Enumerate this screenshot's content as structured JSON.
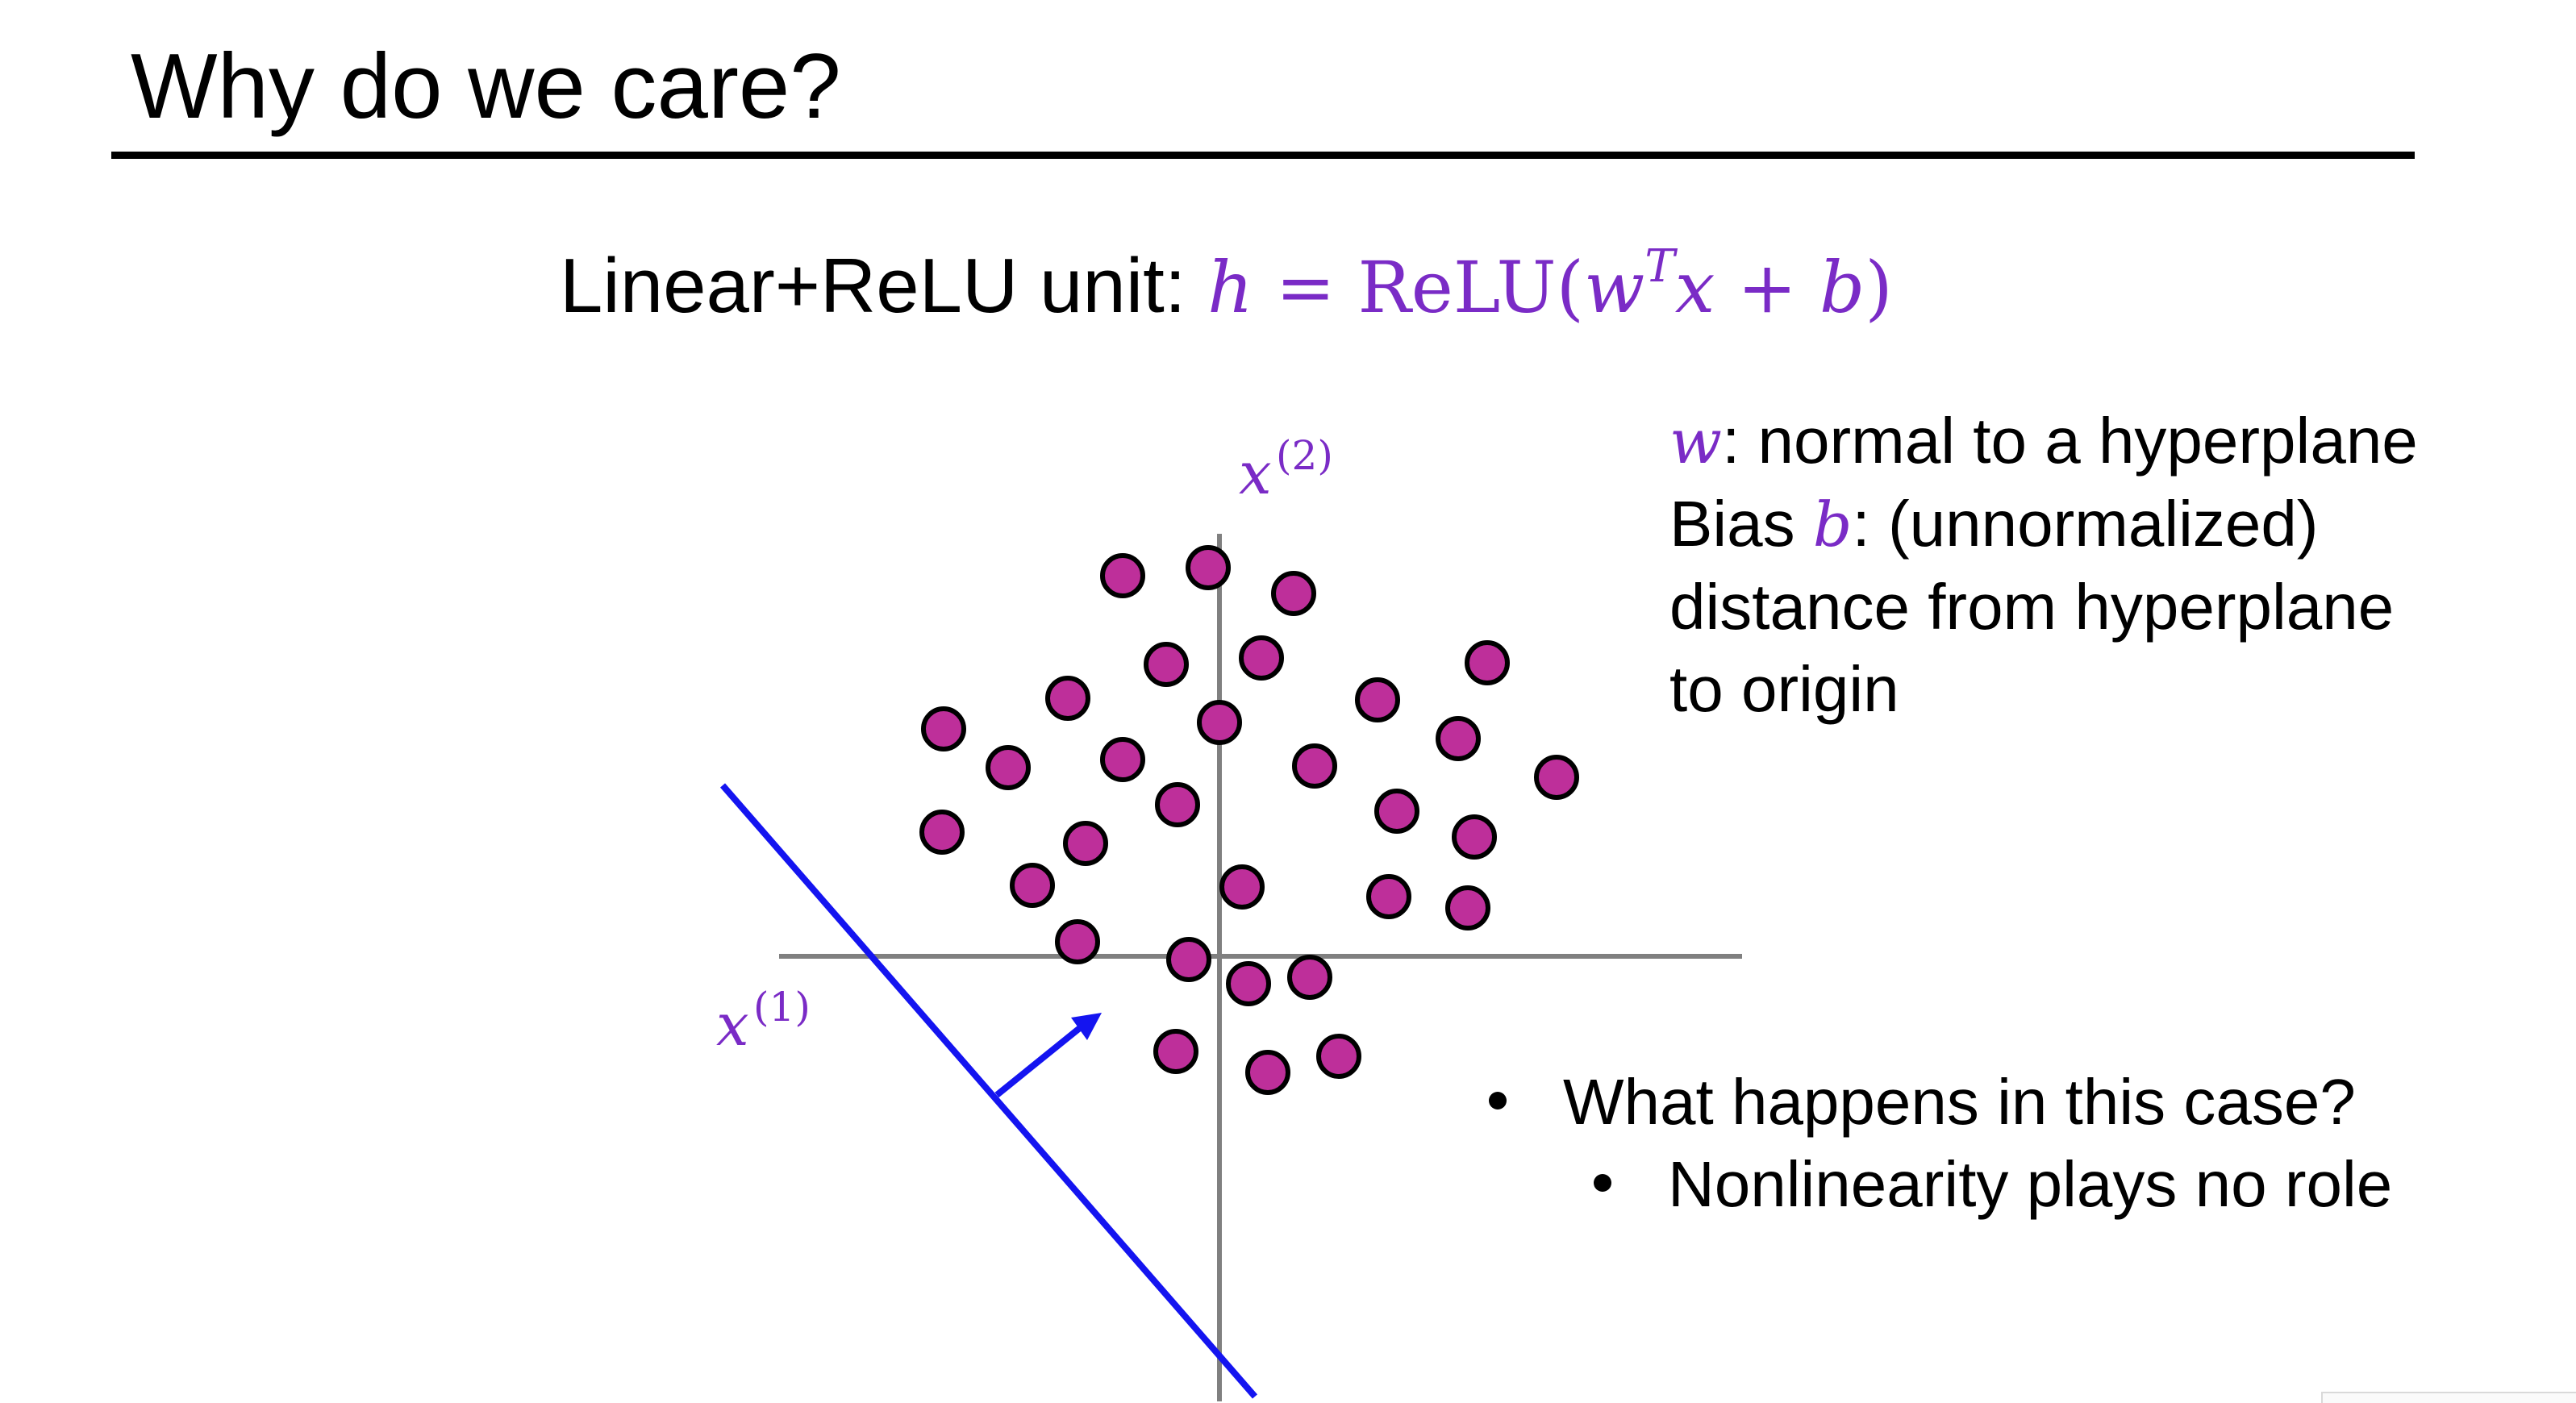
{
  "slide": {
    "title": "Why do we care?",
    "formula": {
      "prefix": "Linear+ReLU unit: ",
      "lhs": "h",
      "equals": " = ",
      "func_open": "ReLU(",
      "w": "w",
      "T": "T",
      "x": "x",
      "plus": " + ",
      "b": "b",
      "close": ")"
    },
    "description": {
      "line1_var": "w",
      "line1_text": ": normal to a hyperplane",
      "line2_pre": "Bias ",
      "line2_var": "b",
      "line2_text": ": (unnormalized)",
      "line3": "distance from hyperplane",
      "line4": "to origin"
    },
    "bullets": [
      {
        "text": "What happens in this case?"
      },
      {
        "text": "Nonlinearity plays no role"
      }
    ]
  },
  "diagram": {
    "x1_label": "x",
    "x1_sup": "(1)",
    "x2_label": "x",
    "x2_sup": "(2)",
    "colors": {
      "points": "#be2f9a",
      "point_outline": "#000000",
      "axes": "#808080",
      "hyperplane": "#1414f0",
      "math": "#7a2bc6"
    },
    "points": [
      [
        -120,
        472
      ],
      [
        -14,
        482
      ],
      [
        92,
        450
      ],
      [
        -66,
        362
      ],
      [
        52,
        370
      ],
      [
        196,
        318
      ],
      [
        332,
        364
      ],
      [
        -188,
        320
      ],
      [
        0,
        290
      ],
      [
        -342,
        282
      ],
      [
        -262,
        234
      ],
      [
        -120,
        244
      ],
      [
        -52,
        188
      ],
      [
        118,
        236
      ],
      [
        296,
        270
      ],
      [
        418,
        222
      ],
      [
        -344,
        154
      ],
      [
        -166,
        140
      ],
      [
        220,
        180
      ],
      [
        316,
        148
      ],
      [
        -232,
        88
      ],
      [
        28,
        86
      ],
      [
        210,
        74
      ],
      [
        308,
        60
      ],
      [
        -176,
        18
      ],
      [
        -38,
        -4
      ],
      [
        36,
        -34
      ],
      [
        112,
        -26
      ],
      [
        -54,
        -118
      ],
      [
        60,
        -144
      ],
      [
        148,
        -124
      ]
    ],
    "hyperplane_normal": "w"
  }
}
